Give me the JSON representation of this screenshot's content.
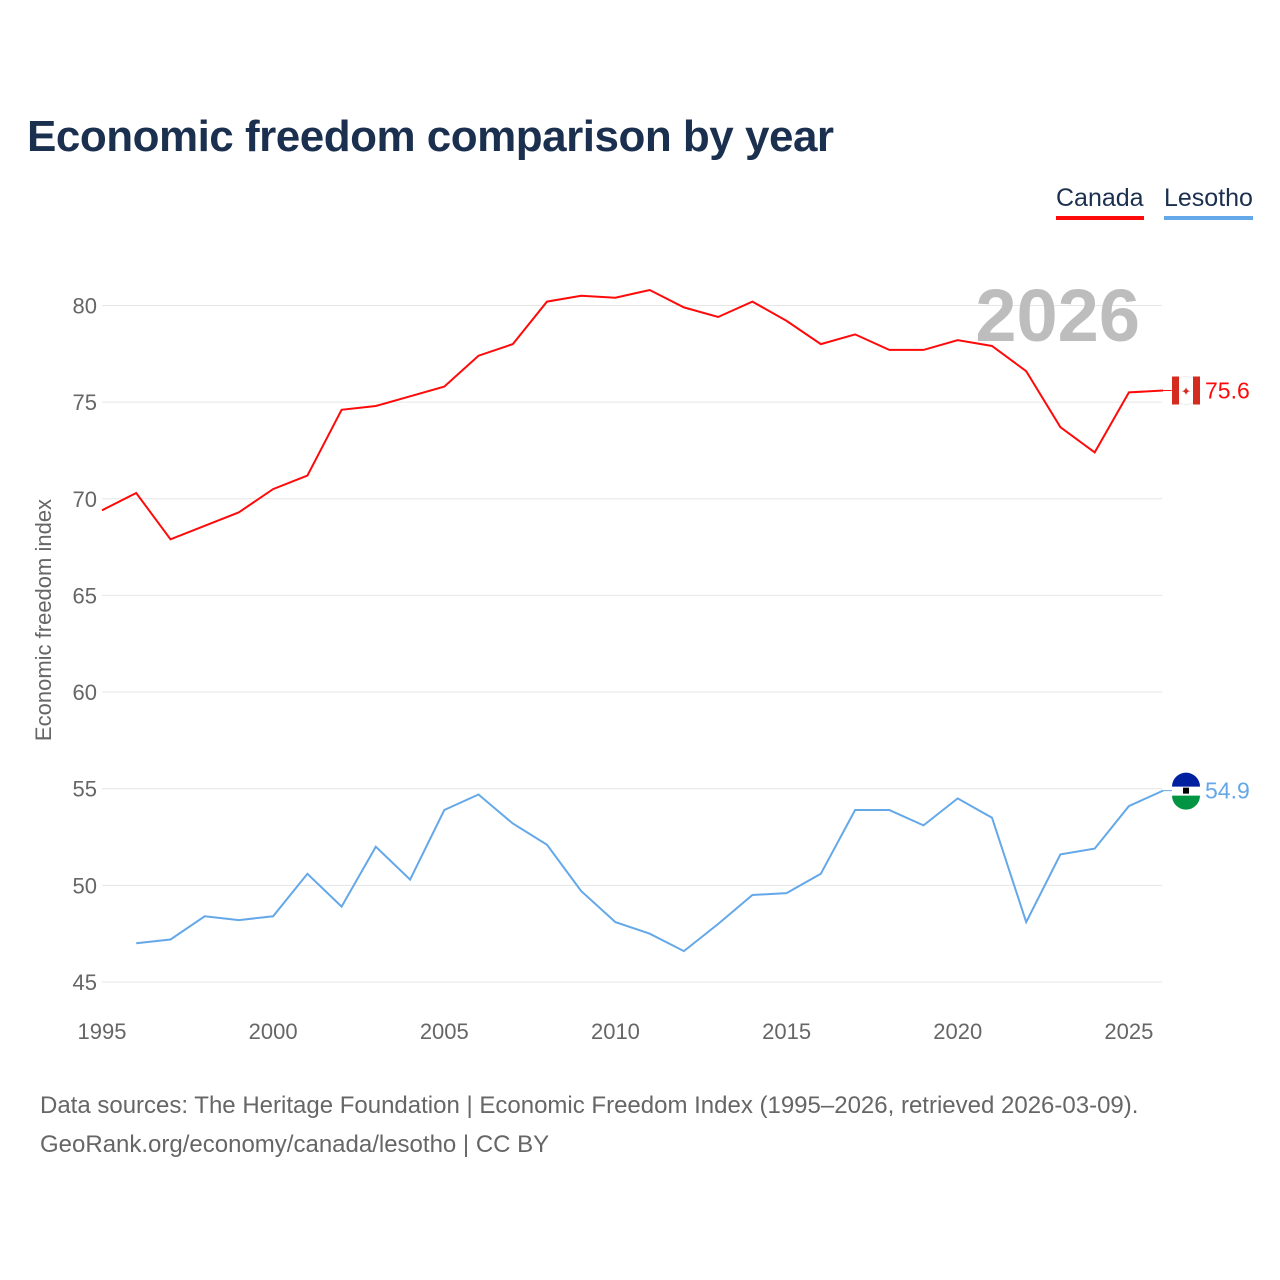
{
  "title": "Economic freedom comparison by year",
  "footer": {
    "line1": "Data sources: The Heritage Foundation | Economic Freedom Index (1995–2026, retrieved 2026-03-09).",
    "line2": "GeoRank.org/economy/canada/lesotho | CC BY"
  },
  "chart_data": {
    "type": "line",
    "title": "Economic freedom comparison by year",
    "xlabel": "",
    "ylabel": "Economic freedom index",
    "xlim": [
      1995,
      2026
    ],
    "ylim": [
      45,
      82
    ],
    "xticks": [
      1995,
      2000,
      2005,
      2010,
      2015,
      2020,
      2025
    ],
    "yticks": [
      45,
      50,
      55,
      60,
      65,
      70,
      75,
      80
    ],
    "grid": true,
    "legend": "top-right",
    "year_label": "2026",
    "series": [
      {
        "name": "Canada",
        "color": "#ff0a0a",
        "end_label": "75.6",
        "x": [
          1995,
          1996,
          1997,
          1998,
          1999,
          2000,
          2001,
          2002,
          2003,
          2004,
          2005,
          2006,
          2007,
          2008,
          2009,
          2010,
          2011,
          2012,
          2013,
          2014,
          2015,
          2016,
          2017,
          2018,
          2019,
          2020,
          2021,
          2022,
          2023,
          2024,
          2025,
          2026
        ],
        "values": [
          69.4,
          70.3,
          67.9,
          68.6,
          69.3,
          70.5,
          71.2,
          74.6,
          74.8,
          75.3,
          75.8,
          77.4,
          78.0,
          80.2,
          80.5,
          80.4,
          80.8,
          79.9,
          79.4,
          80.2,
          79.2,
          78.0,
          78.5,
          77.7,
          77.7,
          78.2,
          77.9,
          76.6,
          73.7,
          72.4,
          75.5,
          75.6
        ]
      },
      {
        "name": "Lesotho",
        "color": "#64a8e9",
        "end_label": "54.9",
        "x": [
          1996,
          1997,
          1998,
          1999,
          2000,
          2001,
          2002,
          2003,
          2004,
          2005,
          2006,
          2007,
          2008,
          2009,
          2010,
          2011,
          2012,
          2013,
          2014,
          2015,
          2016,
          2017,
          2018,
          2019,
          2020,
          2021,
          2022,
          2023,
          2024,
          2025,
          2026
        ],
        "values": [
          47.0,
          47.2,
          48.4,
          48.2,
          48.4,
          50.6,
          48.9,
          52.0,
          50.3,
          53.9,
          54.7,
          53.2,
          52.1,
          49.7,
          48.1,
          47.5,
          46.6,
          48.0,
          49.5,
          49.6,
          50.6,
          53.9,
          53.9,
          53.1,
          54.5,
          53.5,
          48.1,
          51.6,
          51.9,
          54.1,
          54.9
        ]
      }
    ]
  }
}
